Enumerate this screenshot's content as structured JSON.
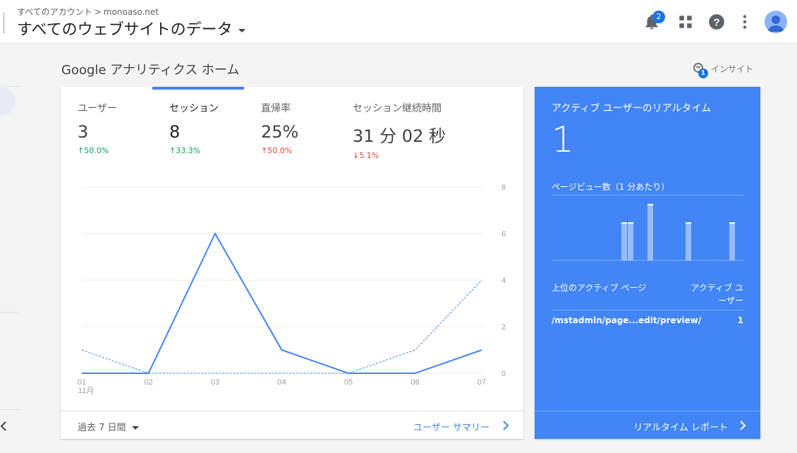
{
  "header": {
    "breadcrumb_account": "すべてのアカウント",
    "breadcrumb_sep": ">",
    "breadcrumb_property": "monoaso.net",
    "view_title": "すべてのウェブサイトのデータ",
    "notification_count": "2"
  },
  "page": {
    "title": "Google アナリティクス ホーム",
    "insight_label": "インサイト",
    "insight_count": "1"
  },
  "metrics": [
    {
      "label": "ユーザー",
      "value": "3",
      "change": "↑50.0%"
    },
    {
      "label": "セッション",
      "value": "8",
      "change": "↑33.3%"
    },
    {
      "label": "直帰率",
      "value": "25%",
      "change": "↑50.0%"
    },
    {
      "label": "セッション継続時間",
      "value": "31 分 02 秒",
      "change": "↓5.1%"
    }
  ],
  "chart_data": {
    "type": "line",
    "x": [
      "01",
      "02",
      "03",
      "04",
      "05",
      "06",
      "07"
    ],
    "x_month_label": "11月",
    "ylim": [
      0,
      8
    ],
    "y_ticks": [
      "8",
      "6",
      "4",
      "2",
      "0"
    ],
    "series": [
      {
        "style": "solid",
        "values": [
          0,
          0,
          6,
          1,
          0,
          0,
          1
        ]
      },
      {
        "style": "dashed",
        "values": [
          1,
          0,
          0,
          0,
          0,
          1,
          4
        ]
      }
    ],
    "grid": true
  },
  "footer": {
    "date_range": "過去 7 日間",
    "summary_link": "ユーザー サマリー"
  },
  "realtime": {
    "title": "アクティブ ユーザーのリアルタイム",
    "active_users": "1",
    "pageviews_label": "ページビュー数（1 分あたり）",
    "pageview_bars": [
      0,
      0,
      0,
      0,
      0,
      0,
      0,
      0,
      0,
      0,
      0,
      0,
      0,
      0,
      0,
      0,
      0,
      0,
      0,
      0,
      0,
      0,
      0,
      0,
      0,
      0,
      0,
      0,
      0,
      0,
      0,
      0,
      0,
      0,
      0,
      0,
      0,
      0,
      0,
      0,
      0,
      0,
      0,
      0,
      0,
      0,
      0,
      0,
      0,
      0,
      0,
      0,
      0,
      0,
      0,
      0,
      0,
      0,
      0,
      0,
      0,
      0,
      0,
      0,
      0,
      0,
      0,
      0,
      0,
      0,
      0,
      0,
      0,
      0,
      0,
      0,
      0,
      0,
      0,
      0,
      0,
      0,
      0,
      0,
      0,
      0,
      0,
      0,
      0,
      0,
      0,
      0,
      0,
      0,
      0,
      0,
      0,
      0,
      0,
      0,
      0,
      0,
      0,
      0,
      0,
      0,
      0,
      0,
      0,
      0,
      0,
      0,
      0,
      0,
      0,
      0,
      0,
      0,
      0,
      0,
      0,
      0,
      0,
      0,
      0,
      0,
      0,
      0,
      0,
      0,
      0,
      0,
      0,
      0,
      0,
      0,
      0,
      0,
      0,
      0,
      0,
      0,
      0,
      0,
      0,
      0,
      0,
      0,
      0,
      0,
      0,
      0,
      0,
      0,
      0,
      0,
      0,
      0,
      0,
      0,
      0,
      0,
      0,
      0,
      0,
      0,
      0,
      0,
      0,
      0,
      0,
      0,
      0,
      0,
      0,
      0,
      0,
      0,
      0,
      0,
      0,
      0,
      0,
      0,
      0,
      0,
      0,
      0,
      0,
      0,
      0,
      0,
      0,
      0,
      0,
      0,
      0,
      0,
      0,
      0,
      0,
      0,
      0,
      0,
      0,
      0,
      0,
      0,
      0,
      0,
      0,
      0,
      0,
      0,
      0,
      0,
      0,
      0,
      0,
      0,
      0,
      0,
      0,
      0,
      0,
      0,
      0,
      0,
      0,
      0,
      0,
      0,
      0,
      0,
      0,
      0,
      0,
      0,
      0,
      0,
      0,
      0,
      0,
      0,
      0,
      0,
      0,
      0,
      0,
      0,
      0,
      0,
      0,
      0,
      0,
      0,
      0,
      0,
      0,
      0,
      0,
      0,
      0,
      0,
      0,
      0
    ],
    "top_pages_header": "上位のアクティブ ページ",
    "active_users_header": "アクティブ ユーザー",
    "top_page": "/mstadmin/page...edit/preview/",
    "top_page_users": "1",
    "report_link": "リアルタイム レポート"
  },
  "colors": {
    "accent": "#4285f4",
    "up_green": "#0f9d58",
    "change_red": "#db4437"
  }
}
